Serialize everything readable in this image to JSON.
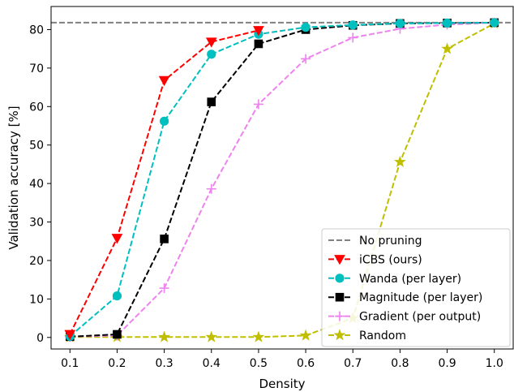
{
  "chart_data": {
    "type": "line",
    "title": "",
    "xlabel": "Density",
    "ylabel": "Validation accuracy [%]",
    "xlim": [
      0.06,
      1.04
    ],
    "ylim": [
      -3,
      86
    ],
    "xticks": [
      0.1,
      0.2,
      0.3,
      0.4,
      0.5,
      0.6,
      0.7,
      0.8,
      0.9,
      1.0
    ],
    "xtick_labels": [
      "0.1",
      "0.2",
      "0.3",
      "0.4",
      "0.5",
      "0.6",
      "0.7",
      "0.8",
      "0.9",
      "1.0"
    ],
    "yticks": [
      0,
      10,
      20,
      30,
      40,
      50,
      60,
      70,
      80
    ],
    "ytick_labels": [
      "0",
      "10",
      "20",
      "30",
      "40",
      "50",
      "60",
      "70",
      "80"
    ],
    "grid": false,
    "legend_position": "bottom-right",
    "reference_line": {
      "name": "No pruning",
      "y": 81.8,
      "color": "#808080",
      "style": "dashed"
    },
    "x": [
      0.1,
      0.2,
      0.3,
      0.4,
      0.5,
      0.6,
      0.7,
      0.8,
      0.9,
      1.0
    ],
    "series": [
      {
        "name": "iCBS (ours)",
        "color": "#ff0000",
        "marker": "triangle-down",
        "x": [
          0.1,
          0.2,
          0.3,
          0.4,
          0.5
        ],
        "values": [
          0.8,
          25.8,
          66.8,
          76.8,
          79.8
        ]
      },
      {
        "name": "Wanda (per layer)",
        "color": "#00bfbf",
        "marker": "circle",
        "x": [
          0.1,
          0.2,
          0.3,
          0.4,
          0.5,
          0.6,
          0.7,
          0.8,
          0.9,
          1.0
        ],
        "values": [
          0.3,
          10.8,
          56.2,
          73.6,
          78.8,
          80.6,
          81.2,
          81.6,
          81.7,
          81.8
        ]
      },
      {
        "name": "Magnitude (per layer)",
        "color": "#000000",
        "marker": "square",
        "x": [
          0.1,
          0.2,
          0.3,
          0.4,
          0.5,
          0.6,
          0.7,
          0.8,
          0.9,
          1.0
        ],
        "values": [
          0.2,
          0.8,
          25.6,
          61.2,
          76.3,
          80.0,
          81.1,
          81.6,
          81.7,
          81.8
        ]
      },
      {
        "name": "Gradient (per output)",
        "color": "#ee82ee",
        "marker": "plus",
        "x": [
          0.1,
          0.2,
          0.3,
          0.4,
          0.5,
          0.6,
          0.7,
          0.8,
          0.9,
          1.0
        ],
        "values": [
          0.2,
          0.5,
          12.8,
          38.6,
          60.6,
          72.4,
          77.9,
          80.2,
          81.3,
          81.8
        ]
      },
      {
        "name": "Random",
        "color": "#bfbf00",
        "marker": "star",
        "x": [
          0.1,
          0.2,
          0.3,
          0.4,
          0.5,
          0.6,
          0.7,
          0.8,
          0.9,
          1.0
        ],
        "values": [
          0.1,
          0.1,
          0.1,
          0.1,
          0.1,
          0.5,
          5.0,
          45.6,
          75.0,
          81.6
        ]
      }
    ]
  }
}
